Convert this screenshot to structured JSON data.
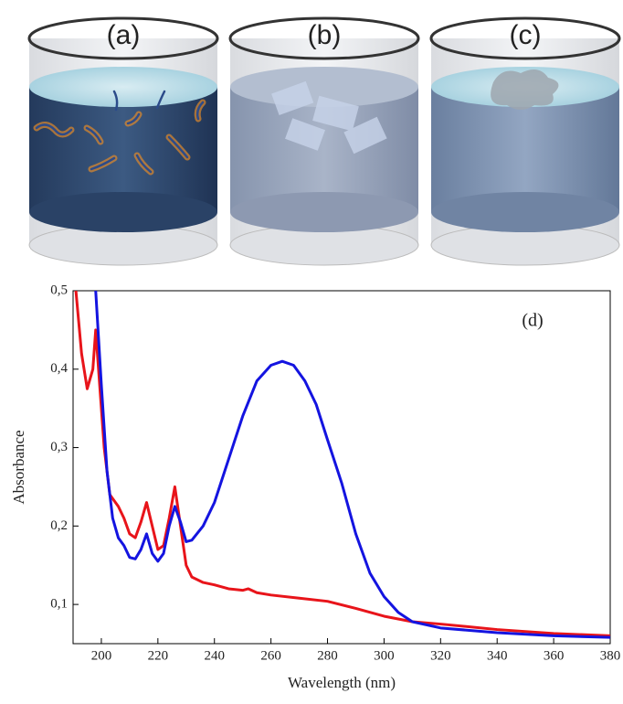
{
  "panels": [
    {
      "label": "(a)"
    },
    {
      "label": "(b)"
    },
    {
      "label": "(c)"
    }
  ],
  "chart_data": {
    "type": "line",
    "annotation": "(d)",
    "x_label": "Wavelength (nm)",
    "y_label": "Absorbance",
    "xlim": [
      190,
      380
    ],
    "ylim": [
      0.05,
      0.5
    ],
    "xticks": [
      200,
      220,
      240,
      260,
      280,
      300,
      320,
      340,
      360,
      380
    ],
    "yticks": [
      {
        "value": 0.1,
        "label": "0,1"
      },
      {
        "value": 0.2,
        "label": "0,2"
      },
      {
        "value": 0.3,
        "label": "0,3"
      },
      {
        "value": 0.4,
        "label": "0,4"
      },
      {
        "value": 0.5,
        "label": "0,5"
      }
    ],
    "series": [
      {
        "color": "#e8141a",
        "x": [
          191,
          193,
          195,
          197,
          198,
          199,
          201,
          203,
          206,
          208,
          210,
          212,
          214,
          216,
          218,
          220,
          222,
          224,
          226,
          228,
          230,
          232,
          236,
          240,
          245,
          250,
          252,
          255,
          260,
          270,
          280,
          290,
          300,
          310,
          320,
          340,
          360,
          380
        ],
        "values": [
          0.5,
          0.42,
          0.375,
          0.4,
          0.45,
          0.4,
          0.3,
          0.24,
          0.225,
          0.21,
          0.19,
          0.185,
          0.205,
          0.23,
          0.2,
          0.17,
          0.175,
          0.21,
          0.25,
          0.2,
          0.15,
          0.135,
          0.128,
          0.125,
          0.12,
          0.118,
          0.12,
          0.115,
          0.112,
          0.108,
          0.104,
          0.095,
          0.085,
          0.078,
          0.075,
          0.068,
          0.063,
          0.06
        ]
      },
      {
        "color": "#1414e0",
        "x": [
          198,
          199,
          200,
          202,
          204,
          206,
          208,
          210,
          212,
          214,
          216,
          218,
          220,
          222,
          224,
          226,
          228,
          230,
          232,
          236,
          240,
          245,
          250,
          255,
          260,
          264,
          268,
          272,
          276,
          280,
          285,
          290,
          295,
          300,
          305,
          310,
          320,
          340,
          360,
          380
        ],
        "values": [
          0.5,
          0.44,
          0.38,
          0.27,
          0.21,
          0.185,
          0.175,
          0.16,
          0.158,
          0.17,
          0.19,
          0.165,
          0.155,
          0.165,
          0.2,
          0.225,
          0.205,
          0.18,
          0.182,
          0.2,
          0.23,
          0.285,
          0.34,
          0.385,
          0.405,
          0.41,
          0.405,
          0.385,
          0.355,
          0.31,
          0.255,
          0.19,
          0.14,
          0.11,
          0.09,
          0.078,
          0.07,
          0.064,
          0.06,
          0.058
        ]
      }
    ]
  }
}
